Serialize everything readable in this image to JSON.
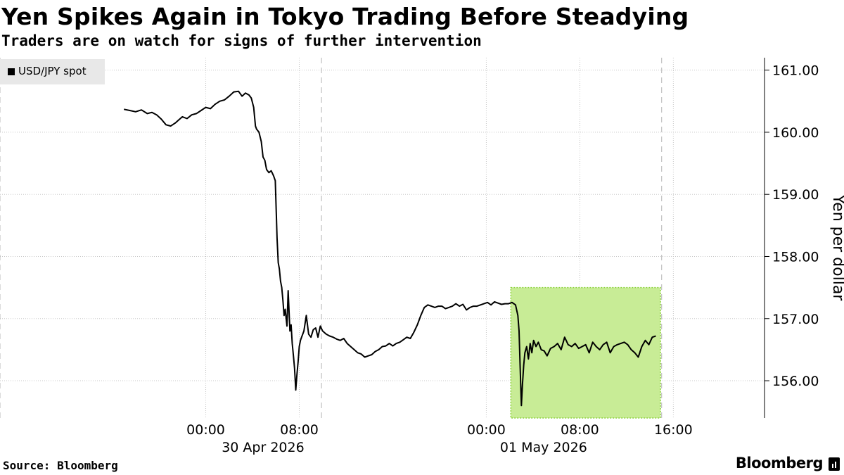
{
  "title": "Yen Spikes Again in Tokyo Trading Before Steadying",
  "subtitle": "Traders are on watch for signs of further intervention",
  "source": "Source: Bloomberg",
  "brand": "Bloomberg",
  "colors": {
    "line": "#000000",
    "highlight_fill": "#c8ec96",
    "highlight_border": "#8cd23c",
    "grid": "#c8c8c8",
    "legend_bg": "#e8e8e8"
  },
  "chart_data": {
    "type": "line",
    "title": "Yen Spikes Again in Tokyo Trading Before Steadying",
    "subtitle": "Traders are on watch for signs of further intervention",
    "ylabel": "Yen per dollar",
    "ylim": [
      155.4,
      161.2
    ],
    "y_ticks": [
      161.0,
      160.0,
      159.0,
      158.0,
      157.0,
      156.0
    ],
    "y_tick_labels": [
      "161.00",
      "160.00",
      "159.00",
      "158.00",
      "157.00",
      "156.00"
    ],
    "y_axis_position": "right",
    "x_unit": "hours from 30 Apr 2026 00:00",
    "xlim": [
      -17.6,
      47.8
    ],
    "x_ticks": [
      {
        "x": 0,
        "time": "00:00",
        "date": "30 Apr 2026"
      },
      {
        "x": 8,
        "time": "08:00",
        "date": ""
      },
      {
        "x": 24,
        "time": "00:00",
        "date": "01 May 2026"
      },
      {
        "x": 32,
        "time": "08:00",
        "date": ""
      },
      {
        "x": 40,
        "time": "16:00",
        "date": ""
      }
    ],
    "date_labels": [
      {
        "text": "30 Apr 2026",
        "x": 4.9
      },
      {
        "text": "01 May 2026",
        "x": 28.9
      }
    ],
    "day_separators": [
      -17.6,
      9.9,
      39.0
    ],
    "grid": true,
    "legend": {
      "position": "top-left",
      "entries": [
        "USD/JPY spot"
      ]
    },
    "highlight": {
      "x_start": 26.1,
      "x_end": 38.9,
      "y_low": 155.4,
      "y_high": 157.5
    },
    "series": [
      {
        "name": "USD/JPY spot",
        "x": [
          -7,
          -6.5,
          -6,
          -5.5,
          -5,
          -4.6,
          -4.2,
          -3.8,
          -3.4,
          -3.0,
          -2.6,
          -2.3,
          -2.0,
          -1.6,
          -1.2,
          -0.8,
          -0.4,
          0.0,
          0.4,
          0.8,
          1.2,
          1.6,
          2.0,
          2.4,
          2.8,
          3.1,
          3.4,
          3.7,
          3.9,
          4.1,
          4.25,
          4.35,
          4.55,
          4.75,
          4.9,
          5.05,
          5.2,
          5.4,
          5.6,
          5.8,
          5.95,
          6.05,
          6.1,
          6.2,
          6.3,
          6.4,
          6.5,
          6.6,
          6.7,
          6.8,
          6.95,
          7.05,
          7.2,
          7.3,
          7.4,
          7.5,
          7.6,
          7.7,
          7.8,
          7.9,
          8.0,
          8.1,
          8.2,
          8.4,
          8.6,
          8.8,
          9.0,
          9.2,
          9.4,
          9.6,
          9.8,
          10.0,
          10.3,
          10.6,
          10.9,
          11.2,
          11.5,
          11.8,
          12.1,
          12.4,
          12.7,
          13.0,
          13.3,
          13.6,
          13.9,
          14.2,
          14.5,
          14.8,
          15.1,
          15.4,
          15.7,
          16.0,
          16.3,
          16.6,
          16.9,
          17.2,
          17.5,
          17.8,
          18.1,
          18.4,
          18.7,
          19.0,
          19.3,
          19.6,
          19.9,
          20.2,
          20.5,
          20.8,
          21.1,
          21.4,
          21.7,
          22.0,
          22.3,
          22.6,
          22.9,
          23.2,
          23.5,
          23.8,
          24.1,
          24.4,
          24.7,
          25.0,
          25.3,
          25.6,
          25.9,
          26.2,
          26.5,
          26.7,
          26.8,
          26.9,
          27.0,
          27.1,
          27.2,
          27.3,
          27.45,
          27.6,
          27.75,
          27.9,
          28.05,
          28.25,
          28.45,
          28.7,
          28.95,
          29.2,
          29.5,
          29.8,
          30.1,
          30.4,
          30.7,
          31.0,
          31.3,
          31.6,
          31.9,
          32.2,
          32.5,
          32.8,
          33.1,
          33.4,
          33.7,
          34.0,
          34.3,
          34.6,
          34.9,
          35.2,
          35.5,
          35.8,
          36.1,
          36.4,
          36.7,
          37.0,
          37.3,
          37.6,
          37.9,
          38.2,
          38.5
        ],
        "values": [
          160.37,
          160.35,
          160.33,
          160.36,
          160.3,
          160.32,
          160.28,
          160.21,
          160.12,
          160.1,
          160.15,
          160.2,
          160.25,
          160.22,
          160.28,
          160.3,
          160.35,
          160.4,
          160.38,
          160.45,
          160.5,
          160.52,
          160.58,
          160.65,
          160.66,
          160.58,
          160.63,
          160.6,
          160.55,
          160.4,
          160.1,
          160.05,
          160.0,
          159.85,
          159.6,
          159.55,
          159.4,
          159.35,
          159.38,
          159.3,
          159.22,
          158.6,
          158.3,
          157.9,
          157.8,
          157.6,
          157.5,
          157.3,
          157.05,
          157.15,
          156.88,
          157.45,
          156.8,
          156.9,
          156.6,
          156.4,
          156.2,
          155.85,
          156.1,
          156.3,
          156.55,
          156.65,
          156.7,
          156.8,
          157.05,
          156.75,
          156.7,
          156.82,
          156.85,
          156.7,
          156.88,
          156.8,
          156.75,
          156.72,
          156.7,
          156.67,
          156.65,
          156.68,
          156.6,
          156.55,
          156.5,
          156.45,
          156.43,
          156.38,
          156.4,
          156.42,
          156.47,
          156.5,
          156.55,
          156.56,
          156.6,
          156.56,
          156.6,
          156.62,
          156.66,
          156.7,
          156.68,
          156.78,
          156.9,
          157.05,
          157.18,
          157.22,
          157.2,
          157.18,
          157.2,
          157.2,
          157.16,
          157.18,
          157.2,
          157.24,
          157.2,
          157.23,
          157.14,
          157.18,
          157.2,
          157.2,
          157.22,
          157.24,
          157.26,
          157.22,
          157.27,
          157.25,
          157.23,
          157.24,
          157.24,
          157.26,
          157.22,
          157.05,
          156.8,
          156.2,
          155.6,
          155.95,
          156.25,
          156.45,
          156.55,
          156.35,
          156.6,
          156.45,
          156.65,
          156.55,
          156.62,
          156.5,
          156.48,
          156.4,
          156.52,
          156.55,
          156.6,
          156.5,
          156.7,
          156.58,
          156.55,
          156.6,
          156.52,
          156.55,
          156.58,
          156.45,
          156.62,
          156.55,
          156.5,
          156.58,
          156.62,
          156.45,
          156.55,
          156.58,
          156.6,
          156.62,
          156.58,
          156.5,
          156.45,
          156.38,
          156.55,
          156.65,
          156.58,
          156.7,
          156.72
        ]
      }
    ]
  }
}
